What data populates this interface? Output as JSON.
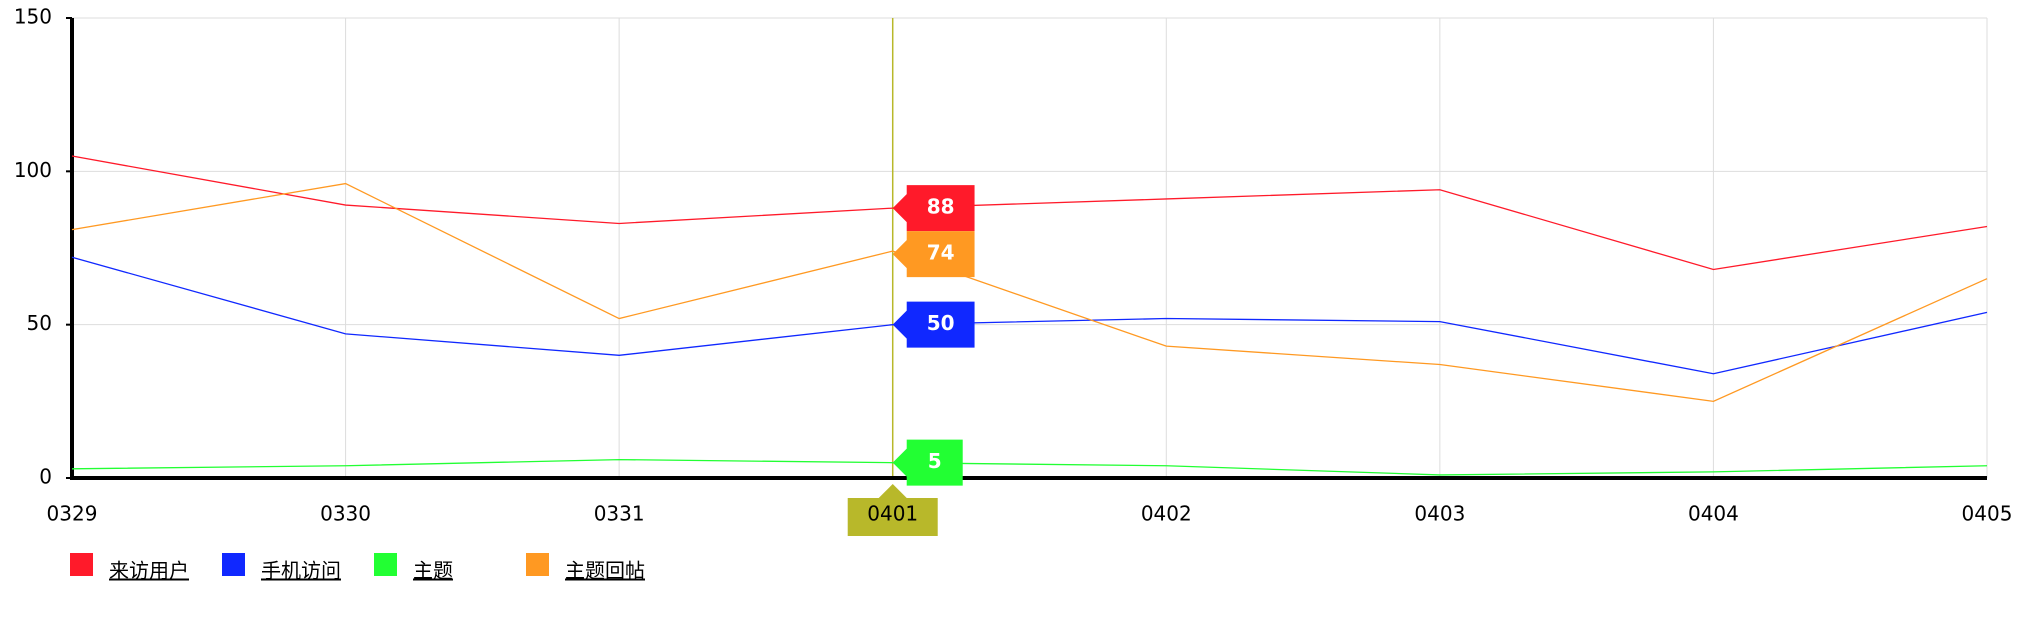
{
  "chart_data": {
    "type": "line",
    "categories": [
      "0329",
      "0330",
      "0331",
      "0401",
      "0402",
      "0403",
      "0404",
      "0405"
    ],
    "series": [
      {
        "name": "来访用户",
        "color": "#ff1a2a",
        "values": [
          105,
          89,
          83,
          88,
          91,
          94,
          68,
          82
        ]
      },
      {
        "name": "手机访问",
        "color": "#1028ff",
        "values": [
          72,
          47,
          40,
          50,
          52,
          51,
          34,
          54
        ]
      },
      {
        "name": "主题",
        "color": "#22ff33",
        "values": [
          3,
          4,
          6,
          5,
          4,
          1,
          2,
          4
        ]
      },
      {
        "name": "主题回帖",
        "color": "#ff9922",
        "values": [
          81,
          96,
          52,
          74,
          43,
          37,
          25,
          65
        ]
      }
    ],
    "ylim": [
      0,
      150
    ],
    "yticks": [
      0,
      50,
      100,
      150
    ],
    "grid": true,
    "hover_index": 3,
    "hover_color": "#b8b82a"
  }
}
